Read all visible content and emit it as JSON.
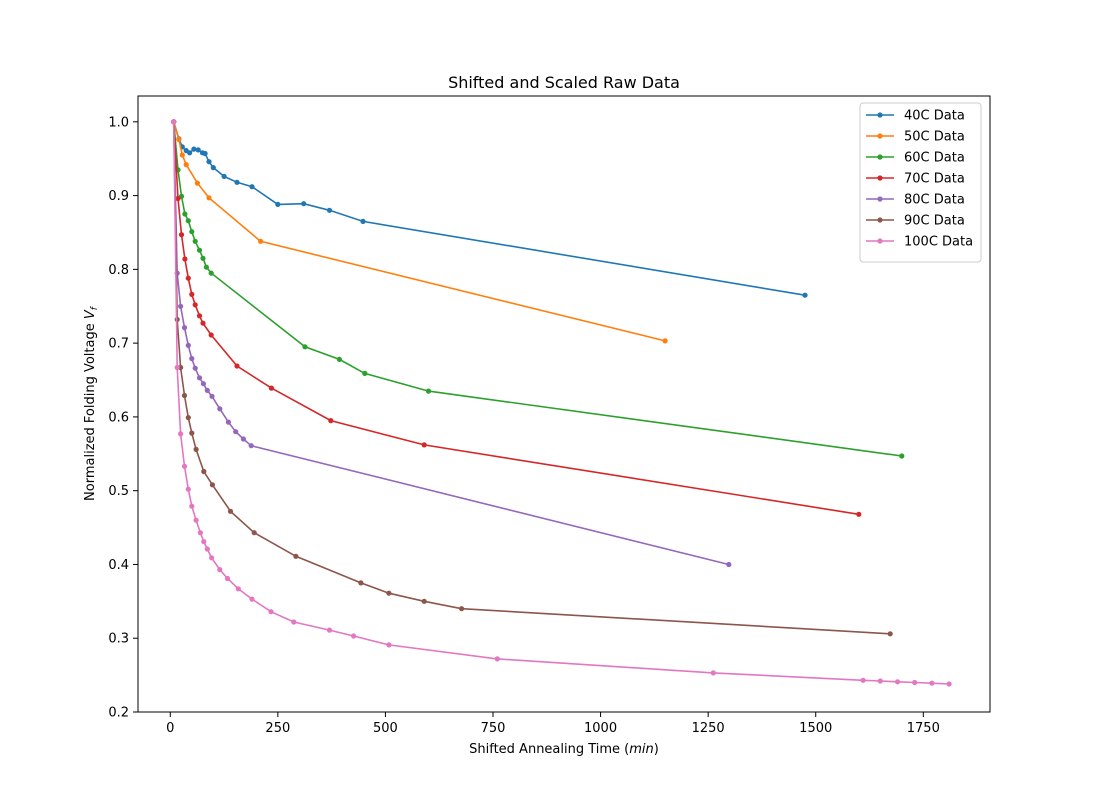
{
  "chart_data": {
    "type": "line",
    "title": "Shifted and Scaled Raw Data",
    "xlabel_prefix": "Shifted Annealing Time (",
    "xlabel_unit": "min",
    "xlabel_suffix": ")",
    "ylabel_prefix": "Normalized Folding Voltage ",
    "ylabel_var": "V",
    "ylabel_sub": "f",
    "xlim": [
      -75,
      1905
    ],
    "ylim": [
      0.2,
      1.035
    ],
    "xticks": [
      0,
      250,
      500,
      750,
      1000,
      1250,
      1500,
      1750
    ],
    "yticks": [
      0.2,
      0.3,
      0.4,
      0.5,
      0.6,
      0.7,
      0.8,
      0.9,
      1.0
    ],
    "ytick_labels": [
      "0.2",
      "0.3",
      "0.4",
      "0.5",
      "0.6",
      "0.7",
      "0.8",
      "0.9",
      "1.0"
    ],
    "grid": false,
    "legend_position": "top-right",
    "series": [
      {
        "name": "40C Data",
        "color": "#1f77b4",
        "points": [
          [
            8,
            1.0
          ],
          [
            20,
            0.977
          ],
          [
            28,
            0.966
          ],
          [
            37,
            0.961
          ],
          [
            45,
            0.958
          ],
          [
            55,
            0.963
          ],
          [
            65,
            0.962
          ],
          [
            75,
            0.958
          ],
          [
            81,
            0.957
          ],
          [
            90,
            0.946
          ],
          [
            100,
            0.938
          ],
          [
            125,
            0.926
          ],
          [
            155,
            0.918
          ],
          [
            190,
            0.912
          ],
          [
            250,
            0.888
          ],
          [
            310,
            0.889
          ],
          [
            370,
            0.88
          ],
          [
            448,
            0.865
          ],
          [
            1475,
            0.765
          ]
        ]
      },
      {
        "name": "50C Data",
        "color": "#ff7f0e",
        "points": [
          [
            8,
            1.0
          ],
          [
            20,
            0.976
          ],
          [
            28,
            0.955
          ],
          [
            37,
            0.942
          ],
          [
            63,
            0.917
          ],
          [
            90,
            0.897
          ],
          [
            210,
            0.838
          ],
          [
            1150,
            0.703
          ]
        ]
      },
      {
        "name": "60C Data",
        "color": "#2ca02c",
        "points": [
          [
            8,
            1.0
          ],
          [
            18,
            0.935
          ],
          [
            26,
            0.899
          ],
          [
            34,
            0.875
          ],
          [
            42,
            0.866
          ],
          [
            50,
            0.851
          ],
          [
            58,
            0.838
          ],
          [
            68,
            0.826
          ],
          [
            76,
            0.815
          ],
          [
            84,
            0.803
          ],
          [
            95,
            0.795
          ],
          [
            313,
            0.695
          ],
          [
            393,
            0.678
          ],
          [
            452,
            0.659
          ],
          [
            600,
            0.635
          ],
          [
            1700,
            0.547
          ]
        ]
      },
      {
        "name": "70C Data",
        "color": "#d62728",
        "points": [
          [
            8,
            1.0
          ],
          [
            18,
            0.896
          ],
          [
            26,
            0.847
          ],
          [
            34,
            0.814
          ],
          [
            42,
            0.788
          ],
          [
            50,
            0.766
          ],
          [
            58,
            0.752
          ],
          [
            68,
            0.737
          ],
          [
            76,
            0.727
          ],
          [
            95,
            0.711
          ],
          [
            155,
            0.669
          ],
          [
            235,
            0.639
          ],
          [
            373,
            0.595
          ],
          [
            590,
            0.562
          ],
          [
            1600,
            0.468
          ]
        ]
      },
      {
        "name": "80C Data",
        "color": "#9467bd",
        "points": [
          [
            8,
            1.0
          ],
          [
            16,
            0.795
          ],
          [
            24,
            0.75
          ],
          [
            33,
            0.721
          ],
          [
            42,
            0.697
          ],
          [
            50,
            0.679
          ],
          [
            58,
            0.666
          ],
          [
            68,
            0.653
          ],
          [
            77,
            0.645
          ],
          [
            86,
            0.636
          ],
          [
            97,
            0.628
          ],
          [
            115,
            0.611
          ],
          [
            135,
            0.593
          ],
          [
            152,
            0.58
          ],
          [
            170,
            0.57
          ],
          [
            188,
            0.561
          ],
          [
            1298,
            0.4
          ]
        ]
      },
      {
        "name": "90C Data",
        "color": "#8c564b",
        "points": [
          [
            8,
            1.0
          ],
          [
            16,
            0.732
          ],
          [
            24,
            0.667
          ],
          [
            33,
            0.629
          ],
          [
            42,
            0.599
          ],
          [
            50,
            0.578
          ],
          [
            60,
            0.556
          ],
          [
            78,
            0.526
          ],
          [
            98,
            0.508
          ],
          [
            140,
            0.472
          ],
          [
            195,
            0.443
          ],
          [
            292,
            0.411
          ],
          [
            443,
            0.375
          ],
          [
            508,
            0.361
          ],
          [
            590,
            0.35
          ],
          [
            677,
            0.34
          ],
          [
            1673,
            0.306
          ]
        ]
      },
      {
        "name": "100C Data",
        "color": "#e377c2",
        "points": [
          [
            8,
            1.0
          ],
          [
            16,
            0.667
          ],
          [
            24,
            0.577
          ],
          [
            33,
            0.533
          ],
          [
            42,
            0.502
          ],
          [
            50,
            0.479
          ],
          [
            60,
            0.46
          ],
          [
            70,
            0.443
          ],
          [
            78,
            0.431
          ],
          [
            86,
            0.421
          ],
          [
            96,
            0.409
          ],
          [
            115,
            0.393
          ],
          [
            133,
            0.381
          ],
          [
            158,
            0.367
          ],
          [
            190,
            0.353
          ],
          [
            234,
            0.336
          ],
          [
            287,
            0.322
          ],
          [
            370,
            0.311
          ],
          [
            426,
            0.303
          ],
          [
            508,
            0.291
          ],
          [
            760,
            0.272
          ],
          [
            1262,
            0.253
          ],
          [
            1610,
            0.243
          ],
          [
            1650,
            0.242
          ],
          [
            1690,
            0.241
          ],
          [
            1730,
            0.24
          ],
          [
            1770,
            0.239
          ],
          [
            1810,
            0.238
          ]
        ]
      }
    ]
  }
}
